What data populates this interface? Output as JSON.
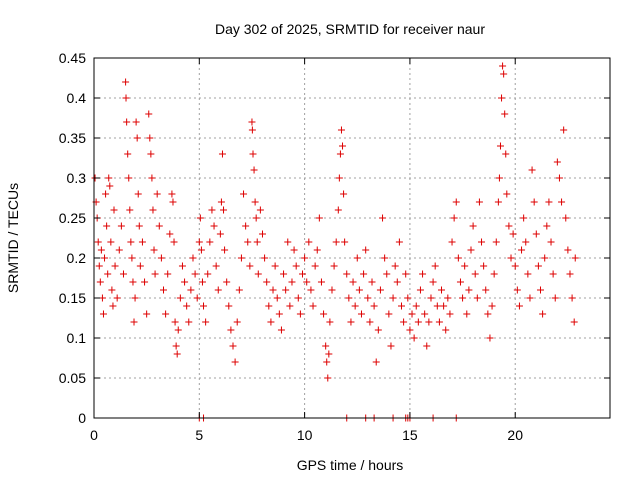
{
  "chart_data": {
    "type": "scatter",
    "title": "Day 302 of 2025, SRMTID for receiver naur",
    "xlabel": "GPS time / hours",
    "ylabel": "SRMTID / TECUs",
    "xlim": [
      0,
      24.5
    ],
    "ylim": [
      0,
      0.45
    ],
    "x_ticks": [
      0,
      5,
      10,
      15,
      20
    ],
    "y_ticks": [
      0,
      0.05,
      0.1,
      0.15,
      0.2,
      0.25,
      0.3,
      0.35,
      0.4,
      0.45
    ],
    "x_tick_labels": [
      "0",
      "5",
      "10",
      "15",
      "20"
    ],
    "y_tick_labels": [
      "0",
      "0.05",
      "0.1",
      "0.15",
      "0.2",
      "0.25",
      "0.3",
      "0.35",
      "0.4",
      "0.45"
    ],
    "grid": true,
    "marker": "+",
    "series_color": "#dd0000",
    "series": [
      {
        "name": "SRMTID",
        "points": [
          [
            0.05,
            0.3
          ],
          [
            0.1,
            0.27
          ],
          [
            0.15,
            0.25
          ],
          [
            0.2,
            0.22
          ],
          [
            0.25,
            0.19
          ],
          [
            0.3,
            0.17
          ],
          [
            0.35,
            0.21
          ],
          [
            0.4,
            0.15
          ],
          [
            0.45,
            0.13
          ],
          [
            0.5,
            0.2
          ],
          [
            0.55,
            0.28
          ],
          [
            0.6,
            0.24
          ],
          [
            0.65,
            0.18
          ],
          [
            0.7,
            0.3
          ],
          [
            0.75,
            0.29
          ],
          [
            0.8,
            0.22
          ],
          [
            0.85,
            0.16
          ],
          [
            0.9,
            0.14
          ],
          [
            0.95,
            0.26
          ],
          [
            1.0,
            0.19
          ],
          [
            1.1,
            0.15
          ],
          [
            1.2,
            0.21
          ],
          [
            1.3,
            0.24
          ],
          [
            1.4,
            0.18
          ],
          [
            1.5,
            0.42
          ],
          [
            1.52,
            0.4
          ],
          [
            1.55,
            0.37
          ],
          [
            1.6,
            0.33
          ],
          [
            1.65,
            0.3
          ],
          [
            1.7,
            0.26
          ],
          [
            1.75,
            0.22
          ],
          [
            1.8,
            0.2
          ],
          [
            1.85,
            0.17
          ],
          [
            1.9,
            0.12
          ],
          [
            1.95,
            0.15
          ],
          [
            2.0,
            0.37
          ],
          [
            2.05,
            0.35
          ],
          [
            2.1,
            0.28
          ],
          [
            2.15,
            0.24
          ],
          [
            2.2,
            0.19
          ],
          [
            2.3,
            0.22
          ],
          [
            2.4,
            0.17
          ],
          [
            2.5,
            0.13
          ],
          [
            2.6,
            0.38
          ],
          [
            2.65,
            0.35
          ],
          [
            2.7,
            0.33
          ],
          [
            2.75,
            0.3
          ],
          [
            2.8,
            0.26
          ],
          [
            2.85,
            0.21
          ],
          [
            2.9,
            0.18
          ],
          [
            3.0,
            0.28
          ],
          [
            3.1,
            0.24
          ],
          [
            3.2,
            0.2
          ],
          [
            3.3,
            0.16
          ],
          [
            3.4,
            0.13
          ],
          [
            3.5,
            0.18
          ],
          [
            3.6,
            0.23
          ],
          [
            3.7,
            0.28
          ],
          [
            3.75,
            0.27
          ],
          [
            3.8,
            0.22
          ],
          [
            3.85,
            0.12
          ],
          [
            3.9,
            0.09
          ],
          [
            3.95,
            0.08
          ],
          [
            4.0,
            0.11
          ],
          [
            4.1,
            0.15
          ],
          [
            4.2,
            0.19
          ],
          [
            4.3,
            0.17
          ],
          [
            4.4,
            0.14
          ],
          [
            4.5,
            0.12
          ],
          [
            4.6,
            0.16
          ],
          [
            4.7,
            0.2
          ],
          [
            4.8,
            0.18
          ],
          [
            4.9,
            0.15
          ],
          [
            5.0,
            0.22
          ],
          [
            5.05,
            0.25
          ],
          [
            5.1,
            0.21
          ],
          [
            5.15,
            0.17
          ],
          [
            5.2,
            0.14
          ],
          [
            5.3,
            0.12
          ],
          [
            5.4,
            0.18
          ],
          [
            5.5,
            0.22
          ],
          [
            5.6,
            0.26
          ],
          [
            5.7,
            0.24
          ],
          [
            5.8,
            0.19
          ],
          [
            5.9,
            0.16
          ],
          [
            6.0,
            0.23
          ],
          [
            6.05,
            0.27
          ],
          [
            6.1,
            0.33
          ],
          [
            6.15,
            0.26
          ],
          [
            6.2,
            0.21
          ],
          [
            6.3,
            0.17
          ],
          [
            6.4,
            0.14
          ],
          [
            6.5,
            0.11
          ],
          [
            6.6,
            0.09
          ],
          [
            6.7,
            0.07
          ],
          [
            6.8,
            0.12
          ],
          [
            6.9,
            0.16
          ],
          [
            7.0,
            0.2
          ],
          [
            7.1,
            0.28
          ],
          [
            7.2,
            0.24
          ],
          [
            7.3,
            0.22
          ],
          [
            7.4,
            0.19
          ],
          [
            7.5,
            0.37
          ],
          [
            7.52,
            0.36
          ],
          [
            7.55,
            0.33
          ],
          [
            7.6,
            0.31
          ],
          [
            7.65,
            0.27
          ],
          [
            7.7,
            0.25
          ],
          [
            7.75,
            0.22
          ],
          [
            7.8,
            0.18
          ],
          [
            7.9,
            0.26
          ],
          [
            8.0,
            0.23
          ],
          [
            8.1,
            0.2
          ],
          [
            8.2,
            0.17
          ],
          [
            8.3,
            0.14
          ],
          [
            8.4,
            0.12
          ],
          [
            8.5,
            0.16
          ],
          [
            8.6,
            0.19
          ],
          [
            8.7,
            0.15
          ],
          [
            8.8,
            0.13
          ],
          [
            8.9,
            0.11
          ],
          [
            9.0,
            0.18
          ],
          [
            9.1,
            0.16
          ],
          [
            9.2,
            0.22
          ],
          [
            9.3,
            0.14
          ],
          [
            9.4,
            0.17
          ],
          [
            9.5,
            0.21
          ],
          [
            9.6,
            0.19
          ],
          [
            9.7,
            0.15
          ],
          [
            9.8,
            0.13
          ],
          [
            9.9,
            0.18
          ],
          [
            10.0,
            0.2
          ],
          [
            10.1,
            0.17
          ],
          [
            10.2,
            0.22
          ],
          [
            10.3,
            0.16
          ],
          [
            10.4,
            0.14
          ],
          [
            10.5,
            0.19
          ],
          [
            10.6,
            0.21
          ],
          [
            10.7,
            0.25
          ],
          [
            10.8,
            0.17
          ],
          [
            10.9,
            0.13
          ],
          [
            11.0,
            0.09
          ],
          [
            11.05,
            0.07
          ],
          [
            11.1,
            0.05
          ],
          [
            11.15,
            0.08
          ],
          [
            11.2,
            0.12
          ],
          [
            11.3,
            0.16
          ],
          [
            11.4,
            0.19
          ],
          [
            11.5,
            0.22
          ],
          [
            11.6,
            0.26
          ],
          [
            11.65,
            0.3
          ],
          [
            11.7,
            0.33
          ],
          [
            11.75,
            0.36
          ],
          [
            11.8,
            0.34
          ],
          [
            11.85,
            0.28
          ],
          [
            11.9,
            0.22
          ],
          [
            12.0,
            0.18
          ],
          [
            12.1,
            0.15
          ],
          [
            12.2,
            0.12
          ],
          [
            12.3,
            0.17
          ],
          [
            12.4,
            0.14
          ],
          [
            12.5,
            0.2
          ],
          [
            12.6,
            0.16
          ],
          [
            12.7,
            0.13
          ],
          [
            12.8,
            0.18
          ],
          [
            12.9,
            0.21
          ],
          [
            13.0,
            0.15
          ],
          [
            13.1,
            0.12
          ],
          [
            13.2,
            0.17
          ],
          [
            13.3,
            0.14
          ],
          [
            13.4,
            0.07
          ],
          [
            13.5,
            0.11
          ],
          [
            13.6,
            0.16
          ],
          [
            13.7,
            0.25
          ],
          [
            13.8,
            0.2
          ],
          [
            13.9,
            0.18
          ],
          [
            14.0,
            0.13
          ],
          [
            14.1,
            0.09
          ],
          [
            14.2,
            0.15
          ],
          [
            14.3,
            0.19
          ],
          [
            14.4,
            0.17
          ],
          [
            14.5,
            0.22
          ],
          [
            14.6,
            0.14
          ],
          [
            14.7,
            0.12
          ],
          [
            14.8,
            0.18
          ],
          [
            14.9,
            0.15
          ],
          [
            15.0,
            0.11
          ],
          [
            15.1,
            0.13
          ],
          [
            15.2,
            0.1
          ],
          [
            15.3,
            0.14
          ],
          [
            15.4,
            0.12
          ],
          [
            15.5,
            0.16
          ],
          [
            15.6,
            0.18
          ],
          [
            15.7,
            0.13
          ],
          [
            15.8,
            0.09
          ],
          [
            15.9,
            0.12
          ],
          [
            16.0,
            0.15
          ],
          [
            16.1,
            0.17
          ],
          [
            16.2,
            0.19
          ],
          [
            16.3,
            0.14
          ],
          [
            16.4,
            0.12
          ],
          [
            16.5,
            0.16
          ],
          [
            16.6,
            0.14
          ],
          [
            16.7,
            0.11
          ],
          [
            16.8,
            0.15
          ],
          [
            16.9,
            0.13
          ],
          [
            17.0,
            0.22
          ],
          [
            17.1,
            0.25
          ],
          [
            17.2,
            0.27
          ],
          [
            17.3,
            0.2
          ],
          [
            17.4,
            0.17
          ],
          [
            17.5,
            0.15
          ],
          [
            17.6,
            0.19
          ],
          [
            17.7,
            0.13
          ],
          [
            17.8,
            0.16
          ],
          [
            17.9,
            0.21
          ],
          [
            18.0,
            0.24
          ],
          [
            18.1,
            0.18
          ],
          [
            18.2,
            0.15
          ],
          [
            18.3,
            0.27
          ],
          [
            18.4,
            0.22
          ],
          [
            18.5,
            0.19
          ],
          [
            18.6,
            0.16
          ],
          [
            18.7,
            0.13
          ],
          [
            18.8,
            0.1
          ],
          [
            18.9,
            0.14
          ],
          [
            19.0,
            0.18
          ],
          [
            19.1,
            0.22
          ],
          [
            19.2,
            0.27
          ],
          [
            19.25,
            0.3
          ],
          [
            19.3,
            0.34
          ],
          [
            19.35,
            0.4
          ],
          [
            19.4,
            0.44
          ],
          [
            19.45,
            0.43
          ],
          [
            19.5,
            0.38
          ],
          [
            19.55,
            0.33
          ],
          [
            19.6,
            0.28
          ],
          [
            19.7,
            0.24
          ],
          [
            19.8,
            0.2
          ],
          [
            19.9,
            0.23
          ],
          [
            20.0,
            0.19
          ],
          [
            20.1,
            0.16
          ],
          [
            20.2,
            0.14
          ],
          [
            20.3,
            0.21
          ],
          [
            20.4,
            0.25
          ],
          [
            20.5,
            0.22
          ],
          [
            20.6,
            0.18
          ],
          [
            20.7,
            0.15
          ],
          [
            20.8,
            0.31
          ],
          [
            20.9,
            0.27
          ],
          [
            21.0,
            0.23
          ],
          [
            21.1,
            0.19
          ],
          [
            21.2,
            0.16
          ],
          [
            21.3,
            0.13
          ],
          [
            21.4,
            0.2
          ],
          [
            21.5,
            0.24
          ],
          [
            21.6,
            0.27
          ],
          [
            21.7,
            0.22
          ],
          [
            21.8,
            0.18
          ],
          [
            21.9,
            0.15
          ],
          [
            22.0,
            0.32
          ],
          [
            22.1,
            0.3
          ],
          [
            22.2,
            0.27
          ],
          [
            22.3,
            0.36
          ],
          [
            22.4,
            0.25
          ],
          [
            22.5,
            0.21
          ],
          [
            22.6,
            0.18
          ],
          [
            22.7,
            0.15
          ],
          [
            22.8,
            0.12
          ],
          [
            22.85,
            0.2
          ]
        ]
      }
    ],
    "zero_points": [
      5.0,
      5.2,
      12.0,
      12.9,
      13.3,
      14.2,
      14.8,
      14.9,
      15.0,
      16.1,
      17.2
    ]
  }
}
